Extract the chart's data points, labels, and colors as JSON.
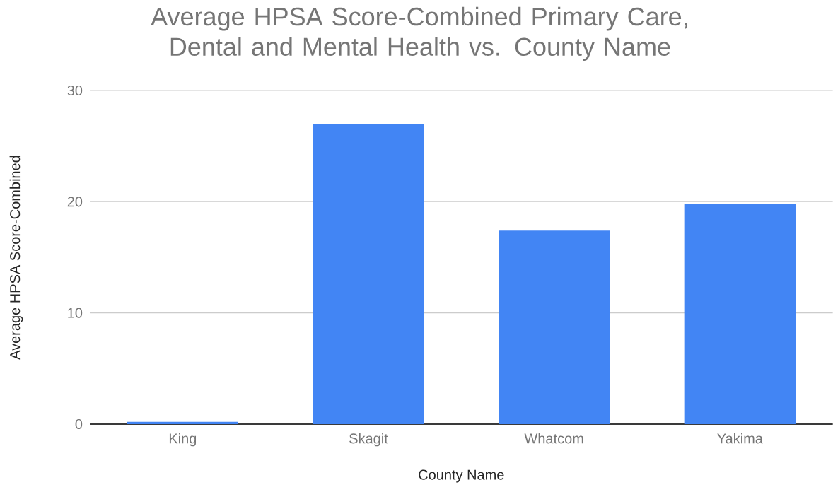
{
  "chart_data": {
    "type": "bar",
    "title": "Average HPSA Score-Combined Primary Care, Dental and Mental Health vs. County Name",
    "xlabel": "County Name",
    "ylabel": "Average HPSA Score-Combined",
    "categories": [
      "King",
      "Skagit",
      "Whatcom",
      "Yakima"
    ],
    "values": [
      0.2,
      27.0,
      17.4,
      19.8
    ],
    "color": "#4285f4",
    "ylim": [
      0,
      30
    ],
    "yticks": [
      0,
      10,
      20,
      30
    ],
    "grid": "y"
  }
}
